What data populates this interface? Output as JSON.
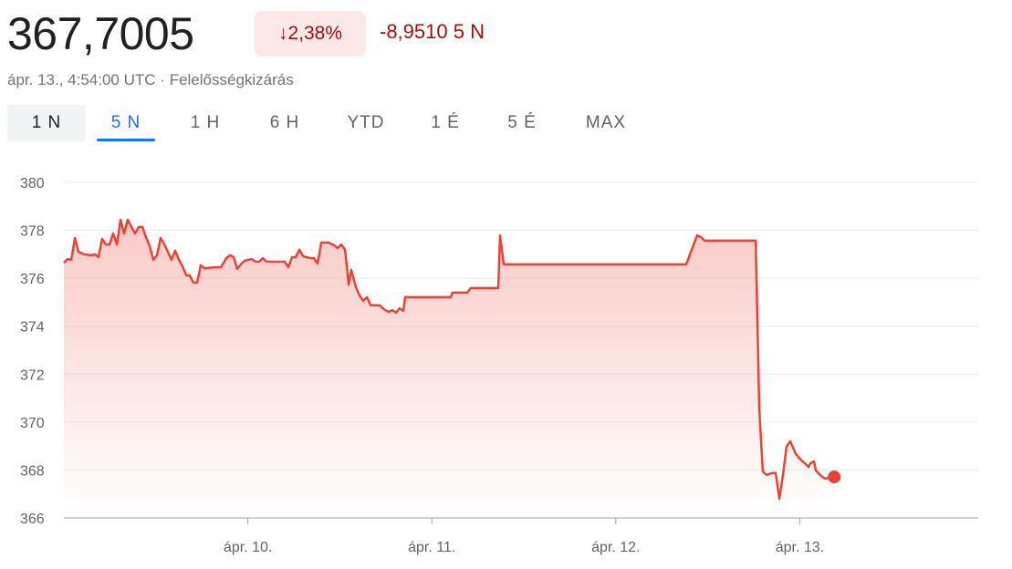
{
  "header": {
    "price": "367,7005",
    "change_pct": "2,38%",
    "change_abs": "-8,9510 5 N",
    "timestamp": "ápr. 13., 4:54:00 UTC",
    "separator": "·",
    "disclaimer": "Felelősségkizárás"
  },
  "colors": {
    "negative": "#a50e0e",
    "line": "#ea4335",
    "badge_bg": "#fce8e6",
    "accent": "#1a73e8"
  },
  "tabs": [
    {
      "label": "1 N"
    },
    {
      "label": "5 N"
    },
    {
      "label": "1 H"
    },
    {
      "label": "6 H"
    },
    {
      "label": "YTD"
    },
    {
      "label": "1 É"
    },
    {
      "label": "5 É"
    },
    {
      "label": "MAX"
    }
  ],
  "chart_data": {
    "type": "area",
    "title": "",
    "xlabel": "",
    "ylabel": "",
    "ylim": [
      366,
      380
    ],
    "yticks": [
      "380",
      "378",
      "376",
      "374",
      "372",
      "370",
      "368",
      "366"
    ],
    "ytick_values": [
      380,
      378,
      376,
      374,
      372,
      370,
      368,
      366
    ],
    "xlim": [
      9.0,
      13.97
    ],
    "xticks": [
      "ápr. 10.",
      "ápr. 11.",
      "ápr. 12.",
      "ápr. 13."
    ],
    "xtick_values": [
      10,
      11,
      12,
      13
    ],
    "grid": true,
    "series": [
      {
        "name": "price",
        "points": [
          [
            9.0,
            376.65
          ],
          [
            9.02,
            376.8
          ],
          [
            9.04,
            376.77
          ],
          [
            9.06,
            377.68
          ],
          [
            9.079,
            377.11
          ],
          [
            9.109,
            377.0
          ],
          [
            9.149,
            376.96
          ],
          [
            9.169,
            377.0
          ],
          [
            9.188,
            376.88
          ],
          [
            9.208,
            377.64
          ],
          [
            9.228,
            377.41
          ],
          [
            9.248,
            377.41
          ],
          [
            9.268,
            377.87
          ],
          [
            9.288,
            377.41
          ],
          [
            9.308,
            378.44
          ],
          [
            9.327,
            377.87
          ],
          [
            9.347,
            378.44
          ],
          [
            9.367,
            378.14
          ],
          [
            9.387,
            377.87
          ],
          [
            9.407,
            378.14
          ],
          [
            9.427,
            378.14
          ],
          [
            9.446,
            377.72
          ],
          [
            9.466,
            377.34
          ],
          [
            9.486,
            376.77
          ],
          [
            9.506,
            376.96
          ],
          [
            9.526,
            377.68
          ],
          [
            9.546,
            377.41
          ],
          [
            9.565,
            377.11
          ],
          [
            9.585,
            376.77
          ],
          [
            9.605,
            377.15
          ],
          [
            9.625,
            376.77
          ],
          [
            9.645,
            376.5
          ],
          [
            9.665,
            376.12
          ],
          [
            9.684,
            376.12
          ],
          [
            9.704,
            375.82
          ],
          [
            9.724,
            375.82
          ],
          [
            9.744,
            376.54
          ],
          [
            9.764,
            376.42
          ],
          [
            9.823,
            376.46
          ],
          [
            9.853,
            376.46
          ],
          [
            9.883,
            376.84
          ],
          [
            9.903,
            376.96
          ],
          [
            9.923,
            376.88
          ],
          [
            9.942,
            376.39
          ],
          [
            9.962,
            376.58
          ],
          [
            9.982,
            376.73
          ],
          [
            10.022,
            376.8
          ],
          [
            10.042,
            376.69
          ],
          [
            10.061,
            376.69
          ],
          [
            10.081,
            376.84
          ],
          [
            10.101,
            376.69
          ],
          [
            10.2,
            376.69
          ],
          [
            10.22,
            376.46
          ],
          [
            10.24,
            376.88
          ],
          [
            10.26,
            376.88
          ],
          [
            10.28,
            377.19
          ],
          [
            10.3,
            376.92
          ],
          [
            10.339,
            376.84
          ],
          [
            10.359,
            376.84
          ],
          [
            10.379,
            376.61
          ],
          [
            10.399,
            377.49
          ],
          [
            10.438,
            377.49
          ],
          [
            10.468,
            377.38
          ],
          [
            10.488,
            377.26
          ],
          [
            10.508,
            377.41
          ],
          [
            10.528,
            377.19
          ],
          [
            10.548,
            375.74
          ],
          [
            10.562,
            376.35
          ],
          [
            10.587,
            375.63
          ],
          [
            10.607,
            375.28
          ],
          [
            10.627,
            375.06
          ],
          [
            10.647,
            375.21
          ],
          [
            10.667,
            374.87
          ],
          [
            10.716,
            374.87
          ],
          [
            10.746,
            374.67
          ],
          [
            10.766,
            374.6
          ],
          [
            10.786,
            374.67
          ],
          [
            10.805,
            374.56
          ],
          [
            10.825,
            374.75
          ],
          [
            10.845,
            374.64
          ],
          [
            10.855,
            375.21
          ],
          [
            11.103,
            375.21
          ],
          [
            11.113,
            375.4
          ],
          [
            11.192,
            375.4
          ],
          [
            11.212,
            375.59
          ],
          [
            11.361,
            375.59
          ],
          [
            11.371,
            377.79
          ],
          [
            11.391,
            376.58
          ],
          [
            12.383,
            376.58
          ],
          [
            12.442,
            377.79
          ],
          [
            12.462,
            377.72
          ],
          [
            12.482,
            377.57
          ],
          [
            12.76,
            377.57
          ],
          [
            12.78,
            370.49
          ],
          [
            12.799,
            367.94
          ],
          [
            12.819,
            367.79
          ],
          [
            12.849,
            367.87
          ],
          [
            12.869,
            367.87
          ],
          [
            12.889,
            366.8
          ],
          [
            12.909,
            367.83
          ],
          [
            12.928,
            368.97
          ],
          [
            12.948,
            369.2
          ],
          [
            12.978,
            368.67
          ],
          [
            13.008,
            368.4
          ],
          [
            13.028,
            368.28
          ],
          [
            13.048,
            368.13
          ],
          [
            13.058,
            368.28
          ],
          [
            13.077,
            368.36
          ],
          [
            13.087,
            367.98
          ],
          [
            13.117,
            367.75
          ],
          [
            13.137,
            367.64
          ],
          [
            13.177,
            367.71
          ]
        ]
      }
    ]
  }
}
